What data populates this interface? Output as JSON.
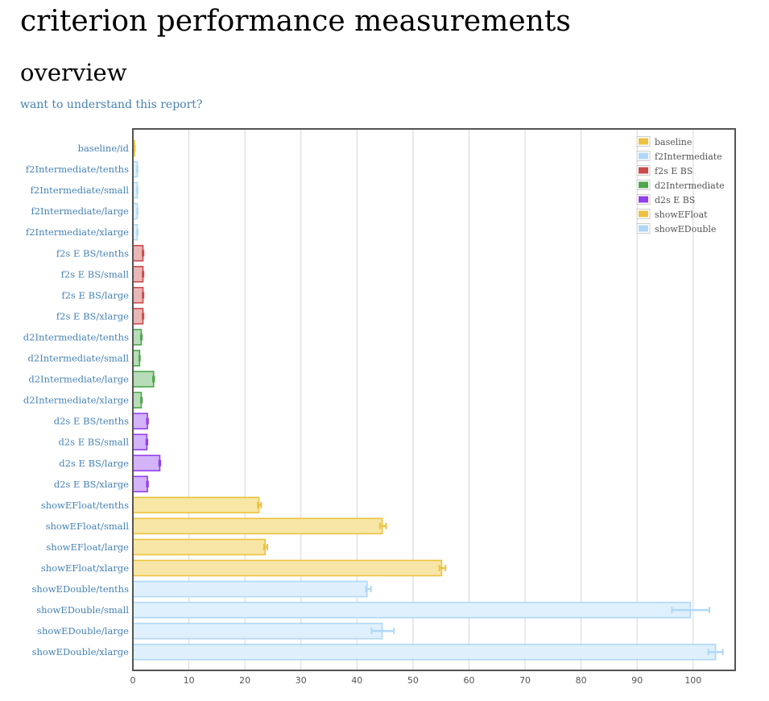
{
  "page": {
    "title": "criterion performance measurements",
    "section": "overview",
    "explain_link": "want to understand this report?"
  },
  "chart_data": {
    "type": "bar",
    "orientation": "horizontal",
    "title": "",
    "xlabel": "",
    "ylabel": "",
    "xlim": [
      0,
      107.5
    ],
    "xticks": [
      0,
      10,
      20,
      30,
      40,
      50,
      60,
      70,
      80,
      90,
      100
    ],
    "grid": true,
    "legend_position": "top-right",
    "series": [
      {
        "name": "baseline",
        "color": "#edc240",
        "fill": "#f8e6a6"
      },
      {
        "name": "f2Intermediate",
        "color": "#afd8f8",
        "fill": "#dff0fc"
      },
      {
        "name": "f2s E BS",
        "color": "#cb4b4b",
        "fill": "#eab7b7"
      },
      {
        "name": "d2Intermediate",
        "color": "#4da74d",
        "fill": "#b8dcb8"
      },
      {
        "name": "d2s E BS",
        "color": "#9440ed",
        "fill": "#d4b3f8"
      },
      {
        "name": "showEFloat",
        "color": "#edc240",
        "fill": "#f8e6a6"
      },
      {
        "name": "showEDouble",
        "color": "#afd8f8",
        "fill": "#dff0fc"
      }
    ],
    "bars": [
      {
        "label": "baseline/id",
        "group": 0,
        "value": 0.3,
        "err": [
          0.25,
          0.35
        ]
      },
      {
        "label": "f2Intermediate/tenths",
        "group": 1,
        "value": 0.8,
        "err": [
          0.75,
          0.85
        ]
      },
      {
        "label": "f2Intermediate/small",
        "group": 1,
        "value": 0.8,
        "err": [
          0.75,
          0.85
        ]
      },
      {
        "label": "f2Intermediate/large",
        "group": 1,
        "value": 0.8,
        "err": [
          0.75,
          0.85
        ]
      },
      {
        "label": "f2Intermediate/xlarge",
        "group": 1,
        "value": 0.8,
        "err": [
          0.75,
          0.85
        ]
      },
      {
        "label": "f2s E BS/tenths",
        "group": 2,
        "value": 1.8,
        "err": [
          1.75,
          1.9
        ]
      },
      {
        "label": "f2s E BS/small",
        "group": 2,
        "value": 1.8,
        "err": [
          1.75,
          1.9
        ]
      },
      {
        "label": "f2s E BS/large",
        "group": 2,
        "value": 1.8,
        "err": [
          1.75,
          1.9
        ]
      },
      {
        "label": "f2s E BS/xlarge",
        "group": 2,
        "value": 1.8,
        "err": [
          1.75,
          1.9
        ]
      },
      {
        "label": "d2Intermediate/tenths",
        "group": 3,
        "value": 1.5,
        "err": [
          1.45,
          1.6
        ]
      },
      {
        "label": "d2Intermediate/small",
        "group": 3,
        "value": 1.2,
        "err": [
          1.15,
          1.25
        ]
      },
      {
        "label": "d2Intermediate/large",
        "group": 3,
        "value": 3.7,
        "err": [
          3.6,
          3.8
        ]
      },
      {
        "label": "d2Intermediate/xlarge",
        "group": 3,
        "value": 1.5,
        "err": [
          1.45,
          1.6
        ]
      },
      {
        "label": "d2s E BS/tenths",
        "group": 4,
        "value": 2.6,
        "err": [
          2.5,
          2.7
        ]
      },
      {
        "label": "d2s E BS/small",
        "group": 4,
        "value": 2.5,
        "err": [
          2.4,
          2.6
        ]
      },
      {
        "label": "d2s E BS/large",
        "group": 4,
        "value": 4.8,
        "err": [
          4.7,
          4.9
        ]
      },
      {
        "label": "d2s E BS/xlarge",
        "group": 4,
        "value": 2.6,
        "err": [
          2.5,
          2.7
        ]
      },
      {
        "label": "showEFloat/tenths",
        "group": 5,
        "value": 22.5,
        "err": [
          22.3,
          22.9
        ]
      },
      {
        "label": "showEFloat/small",
        "group": 5,
        "value": 44.5,
        "err": [
          44.1,
          45.2
        ]
      },
      {
        "label": "showEFloat/large",
        "group": 5,
        "value": 23.6,
        "err": [
          23.4,
          24.0
        ]
      },
      {
        "label": "showEFloat/xlarge",
        "group": 5,
        "value": 55.1,
        "err": [
          54.7,
          55.8
        ]
      },
      {
        "label": "showEDouble/tenths",
        "group": 6,
        "value": 41.8,
        "err": [
          41.6,
          42.5
        ]
      },
      {
        "label": "showEDouble/small",
        "group": 6,
        "value": 99.5,
        "err": [
          96.2,
          102.9
        ]
      },
      {
        "label": "showEDouble/large",
        "group": 6,
        "value": 44.5,
        "err": [
          42.6,
          46.6
        ]
      },
      {
        "label": "showEDouble/xlarge",
        "group": 6,
        "value": 104.0,
        "err": [
          102.7,
          105.3
        ]
      }
    ]
  }
}
